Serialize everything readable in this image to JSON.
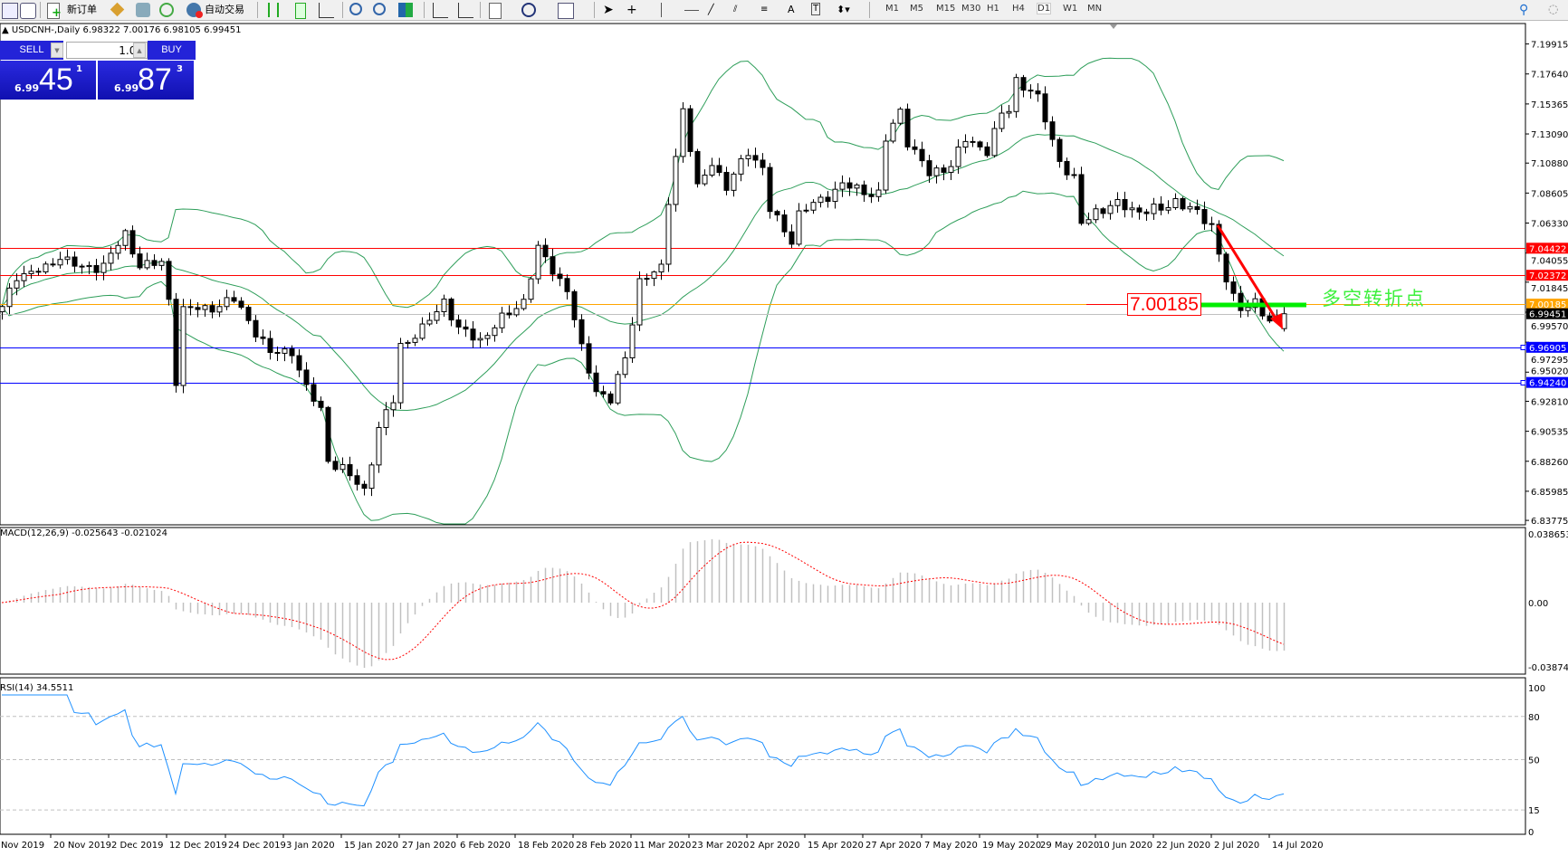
{
  "toolbar": {
    "new_order": "新订单",
    "auto_trading": "自动交易",
    "timeframes": [
      "M1",
      "M5",
      "M15",
      "M30",
      "H1",
      "H4",
      "D1",
      "W1",
      "MN"
    ],
    "active_timeframe": "D1",
    "icons": [
      "new-chart-icon",
      "profiles-icon",
      "new-order-icon",
      "metaeditor-icon",
      "navigator-icon",
      "signals-icon",
      "auto-trading-icon",
      "bar-chart-icon",
      "candlestick-icon",
      "line-chart-icon",
      "zoom-in-icon",
      "zoom-out-icon",
      "tile-windows-icon",
      "autoscroll-icon",
      "chart-shift-icon",
      "indicators-icon",
      "periods-icon",
      "templates-icon",
      "cursor-icon",
      "crosshair-icon",
      "vertical-line-icon",
      "horizontal-line-icon",
      "trendline-icon",
      "equidistant-channel-icon",
      "fibonacci-icon",
      "text-icon",
      "text-label-icon",
      "arrows-icon",
      "search-icon",
      "community-icon"
    ]
  },
  "chart": {
    "title": "USDCNH-,Daily  6.98322 7.00176 6.98105 6.99451",
    "one_click": {
      "sell_label": "SELL",
      "buy_label": "BUY",
      "lot": "1.00",
      "sell_prefix": "6.99",
      "sell_big": "45",
      "sell_sup": "1",
      "buy_prefix": "6.99",
      "buy_big": "87",
      "buy_sup": "3"
    },
    "annotation_price": "7.00185",
    "annotation_text": "多空转折点",
    "colors": {
      "bull": "#ffffff",
      "bear": "#000000",
      "bands": "#2e9e5a",
      "resistance": "#ff0000",
      "pivot": "#ffa500",
      "bid": "#c0c0c0",
      "support": "#0000ff",
      "annotation": "#3ef03e",
      "arrow": "#ff0000",
      "macd_hist": "#c0c0c0",
      "macd_signal": "#ff0000",
      "rsi": "#1e90ff"
    }
  },
  "chart_data": {
    "type": "candlestick",
    "symbol": "USDCNH-",
    "timeframe": "Daily",
    "price_axis_ticks": [
      "7.19915",
      "7.17640",
      "7.15365",
      "7.13090",
      "7.10880",
      "7.08605",
      "7.06330",
      "7.04055",
      "7.01845",
      "6.99570",
      "6.97295",
      "6.95020",
      "6.92810",
      "6.90535",
      "6.88260",
      "6.85985",
      "6.83775"
    ],
    "ylim": [
      6.83775,
      7.19915
    ],
    "date_labels": [
      "Nov 2019",
      "20 Nov 2019",
      "2 Dec 2019",
      "12 Dec 2019",
      "24 Dec 2019",
      "3 Jan 2020",
      "15 Jan 2020",
      "27 Jan 2020",
      "6 Feb 2020",
      "18 Feb 2020",
      "28 Feb 2020",
      "11 Mar 2020",
      "23 Mar 2020",
      "2 Apr 2020",
      "15 Apr 2020",
      "27 Apr 2020",
      "7 May 2020",
      "19 May 2020",
      "29 May 2020",
      "10 Jun 2020",
      "22 Jun 2020",
      "2 Jul 2020",
      "14 Jul 2020"
    ],
    "bar_count": 178,
    "close_anchors": [
      [
        0,
        6.998
      ],
      [
        2,
        7.024
      ],
      [
        6,
        7.028
      ],
      [
        8,
        7.039
      ],
      [
        11,
        7.028
      ],
      [
        14,
        7.032
      ],
      [
        17,
        7.054
      ],
      [
        19,
        7.032
      ],
      [
        22,
        7.032
      ],
      [
        23,
        7.005
      ],
      [
        24,
        6.945
      ],
      [
        25,
        6.998
      ],
      [
        28,
        6.998
      ],
      [
        32,
        7.005
      ],
      [
        34,
        6.99
      ],
      [
        37,
        6.964
      ],
      [
        40,
        6.967
      ],
      [
        42,
        6.937
      ],
      [
        44,
        6.922
      ],
      [
        45,
        6.884
      ],
      [
        47,
        6.876
      ],
      [
        50,
        6.861
      ],
      [
        52,
        6.907
      ],
      [
        54,
        6.929
      ],
      [
        55,
        6.971
      ],
      [
        58,
        6.982
      ],
      [
        61,
        7.005
      ],
      [
        63,
        6.982
      ],
      [
        66,
        6.975
      ],
      [
        69,
        6.99
      ],
      [
        72,
        7.005
      ],
      [
        74,
        7.043
      ],
      [
        76,
        7.028
      ],
      [
        78,
        7.013
      ],
      [
        80,
        6.967
      ],
      [
        82,
        6.937
      ],
      [
        84,
        6.929
      ],
      [
        86,
        6.96
      ],
      [
        88,
        7.02
      ],
      [
        91,
        7.028
      ],
      [
        92,
        7.081
      ],
      [
        94,
        7.149
      ],
      [
        95,
        7.119
      ],
      [
        96,
        7.089
      ],
      [
        98,
        7.111
      ],
      [
        100,
        7.089
      ],
      [
        103,
        7.119
      ],
      [
        105,
        7.104
      ],
      [
        106,
        7.073
      ],
      [
        109,
        7.051
      ],
      [
        110,
        7.07
      ],
      [
        113,
        7.081
      ],
      [
        116,
        7.092
      ],
      [
        118,
        7.089
      ],
      [
        121,
        7.085
      ],
      [
        122,
        7.126
      ],
      [
        124,
        7.149
      ],
      [
        125,
        7.126
      ],
      [
        128,
        7.1
      ],
      [
        131,
        7.108
      ],
      [
        133,
        7.126
      ],
      [
        136,
        7.119
      ],
      [
        138,
        7.145
      ],
      [
        139,
        7.149
      ],
      [
        140,
        7.172
      ],
      [
        142,
        7.164
      ],
      [
        143,
        7.157
      ],
      [
        145,
        7.126
      ],
      [
        146,
        7.111
      ],
      [
        148,
        7.096
      ],
      [
        149,
        7.062
      ],
      [
        151,
        7.073
      ],
      [
        154,
        7.077
      ],
      [
        157,
        7.073
      ],
      [
        160,
        7.073
      ],
      [
        162,
        7.081
      ],
      [
        165,
        7.07
      ],
      [
        167,
        7.062
      ],
      [
        169,
        7.02
      ],
      [
        170,
        7.005
      ],
      [
        171,
        6.998
      ],
      [
        173,
        7.005
      ],
      [
        175,
        6.986
      ],
      [
        177,
        6.99451
      ]
    ],
    "last_bar": {
      "open": 6.98322,
      "high": 7.00176,
      "low": 6.98105,
      "close": 6.99451
    },
    "horizontal_levels": [
      {
        "price": "7.04422",
        "kind": "resistance"
      },
      {
        "price": "7.02372",
        "kind": "resistance"
      },
      {
        "price": "7.00185",
        "kind": "pivot"
      },
      {
        "price": "6.99451",
        "kind": "bid"
      },
      {
        "price": "6.96905",
        "kind": "support"
      },
      {
        "price": "6.94240",
        "kind": "support"
      }
    ],
    "bollinger": {
      "period": 20,
      "deviation": 2
    },
    "macd": {
      "label": "MACD(12,26,9) -0.025643 -0.021024",
      "ticks": [
        "0.038653",
        "0.00",
        "-0.038745"
      ],
      "ylim": [
        -0.038745,
        0.038653
      ]
    },
    "rsi": {
      "label": "RSI(14) 34.5511",
      "ticks": [
        "100",
        "80",
        "50",
        "15",
        "0"
      ],
      "levels": [
        80,
        50,
        15
      ],
      "ylim": [
        0,
        100
      ]
    }
  }
}
